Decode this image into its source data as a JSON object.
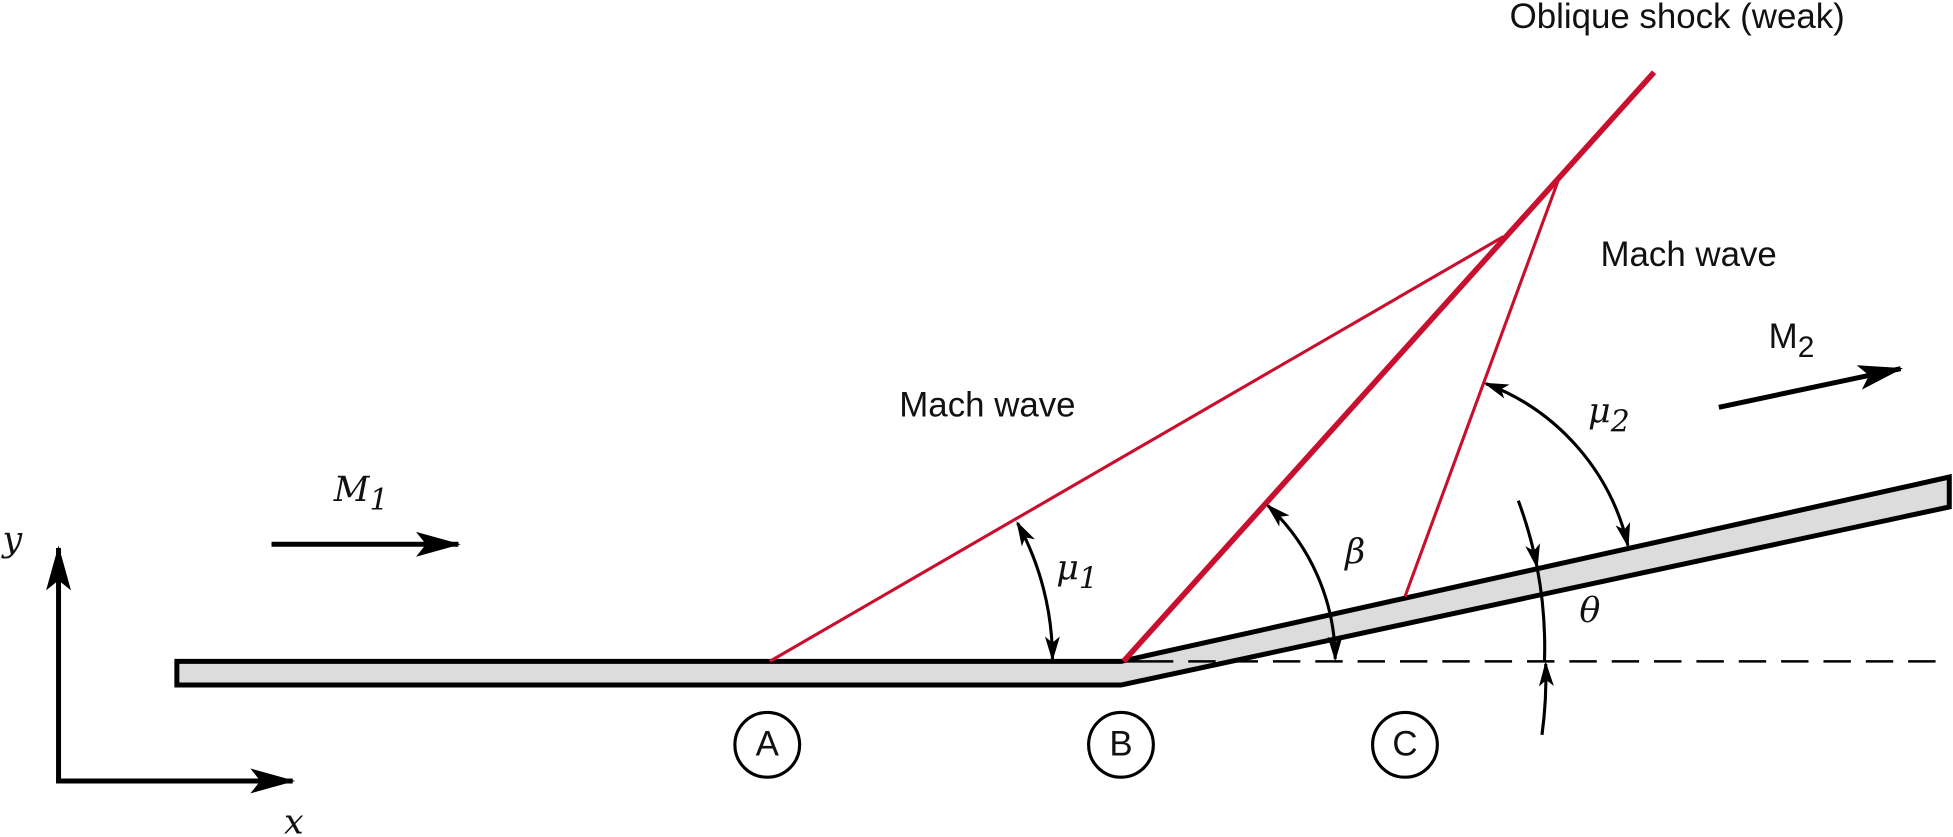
{
  "labels": {
    "oblique_shock": "Oblique shock (weak)",
    "mach_wave_upper": "Mach wave",
    "mach_wave_lower": "Mach wave",
    "m1": {
      "base": "M",
      "sub": "1"
    },
    "m2": {
      "base": "M",
      "sub": "2"
    },
    "mu1": {
      "base": "μ",
      "sub": "1"
    },
    "mu2": {
      "base": "μ",
      "sub": "2"
    },
    "beta": "β",
    "theta": "θ",
    "axis_y": "y",
    "axis_x": "x",
    "point_a": "A",
    "point_b": "B",
    "point_c": "C"
  }
}
